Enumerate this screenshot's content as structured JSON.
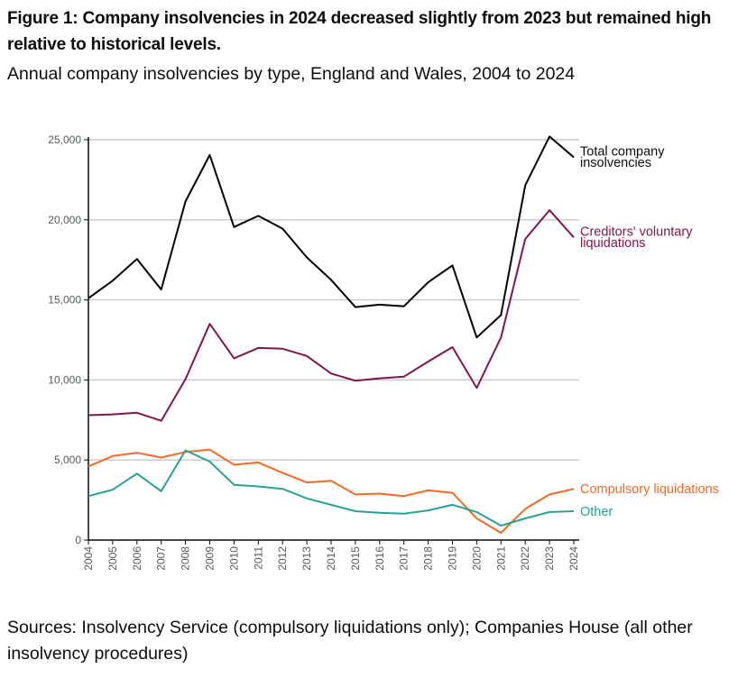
{
  "title": "Figure 1: Company insolvencies in 2024 decreased slightly from 2023 but remained high relative to historical levels.",
  "subtitle": "Annual company insolvencies by type, England and Wales, 2004 to 2024",
  "source": "Sources: Insolvency Service (compulsory liquidations only); Companies House (all other insolvency procedures)",
  "chart_data": {
    "type": "line",
    "x": [
      2004,
      2005,
      2006,
      2007,
      2008,
      2009,
      2010,
      2011,
      2012,
      2013,
      2014,
      2015,
      2016,
      2017,
      2018,
      2019,
      2020,
      2021,
      2022,
      2023,
      2024
    ],
    "ylim": [
      0,
      25000
    ],
    "yticks": [
      0,
      5000,
      10000,
      15000,
      20000,
      25000
    ],
    "ytick_labels": [
      "0",
      "5,000",
      "10,000",
      "15,000",
      "20,000",
      "25,000"
    ],
    "grid": true,
    "legend": "direct labels at line ends",
    "series": [
      {
        "name": "Total company insolvencies",
        "label_lines": [
          "Total company",
          "insolvencies"
        ],
        "color": "#000000",
        "values": [
          15100,
          16200,
          17550,
          15650,
          21150,
          24050,
          19550,
          20250,
          19450,
          17650,
          16250,
          14550,
          14700,
          14600,
          16100,
          17150,
          12650,
          14050,
          22150,
          25200,
          23900
        ]
      },
      {
        "name": "Creditors' voluntary liquidations",
        "label_lines": [
          "Creditors' voluntary",
          "liquidations"
        ],
        "color": "#801650",
        "values": [
          7800,
          7850,
          7950,
          7450,
          10050,
          13500,
          11350,
          12000,
          11950,
          11500,
          10400,
          9950,
          10100,
          10200,
          11150,
          12050,
          9500,
          12650,
          18800,
          20600,
          18900
        ]
      },
      {
        "name": "Compulsory liquidations",
        "label_lines": [
          "Compulsory liquidations"
        ],
        "color": "#f46a25",
        "values": [
          4600,
          5250,
          5450,
          5150,
          5500,
          5650,
          4700,
          4850,
          4200,
          3600,
          3700,
          2850,
          2900,
          2750,
          3100,
          2950,
          1350,
          450,
          1950,
          2850,
          3200
        ]
      },
      {
        "name": "Other",
        "label_lines": [
          "Other"
        ],
        "color": "#28a197",
        "values": [
          2750,
          3150,
          4150,
          3050,
          5600,
          4900,
          3450,
          3350,
          3200,
          2600,
          2200,
          1800,
          1700,
          1650,
          1850,
          2200,
          1750,
          900,
          1350,
          1750,
          1800
        ]
      }
    ]
  }
}
